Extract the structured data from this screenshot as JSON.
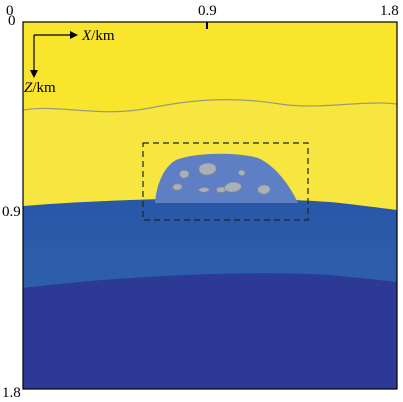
{
  "figure": {
    "ticks_top": [
      "0",
      "0.9",
      "1.8"
    ],
    "ticks_left": [
      "0",
      "0.9",
      "1.8"
    ],
    "axis_x": {
      "var": "X",
      "unit": "/km"
    },
    "axis_z": {
      "var": "Z",
      "unit": "/km"
    }
  },
  "colors": {
    "upper_layer": "#f8e52c",
    "middle_layer_top": "#2a57a8",
    "middle_layer_bottom": "#2e63ad",
    "lower_layer": "#2d3a95",
    "body": "#5f7fc4",
    "inclusions": "#a9b0b8",
    "frame": "#000000"
  }
}
